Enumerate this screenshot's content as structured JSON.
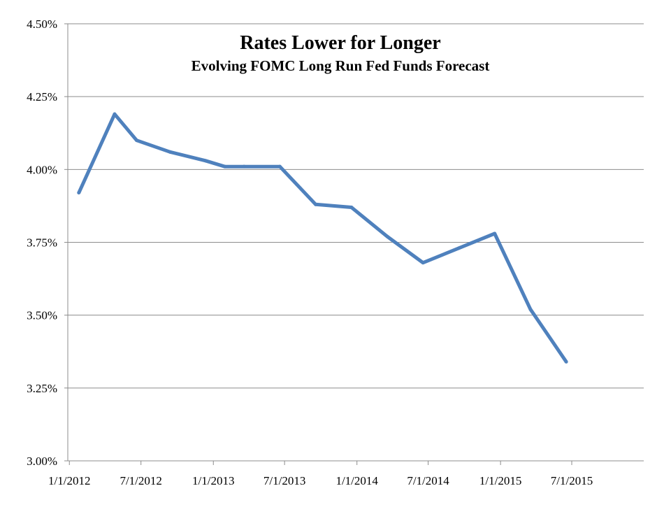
{
  "chart_data": {
    "type": "line",
    "title": "Rates Lower for Longer",
    "subtitle": "Evolving FOMC Long Run Fed Funds Forecast",
    "xlabel": "",
    "ylabel": "",
    "x_ticks": [
      "1/1/2012",
      "7/1/2012",
      "1/1/2013",
      "7/1/2013",
      "1/1/2014",
      "7/1/2014",
      "1/1/2015",
      "7/1/2015"
    ],
    "y_ticks": [
      "3.00%",
      "3.25%",
      "3.50%",
      "3.75%",
      "4.00%",
      "4.25%",
      "4.50%"
    ],
    "xlim": [
      "2011-12-28",
      "2015-12-31"
    ],
    "ylim": [
      3.0,
      4.5
    ],
    "grid": "horizontal",
    "legend": "none",
    "series": [
      {
        "color": "#4f81bd",
        "points": [
          {
            "x": "2012-01-25",
            "y": 3.92
          },
          {
            "x": "2012-04-25",
            "y": 4.19
          },
          {
            "x": "2012-06-20",
            "y": 4.1
          },
          {
            "x": "2012-09-13",
            "y": 4.06
          },
          {
            "x": "2012-12-12",
            "y": 4.03
          },
          {
            "x": "2013-01-30",
            "y": 4.01
          },
          {
            "x": "2013-03-20",
            "y": 4.01
          },
          {
            "x": "2013-06-19",
            "y": 4.01
          },
          {
            "x": "2013-09-18",
            "y": 3.88
          },
          {
            "x": "2013-12-18",
            "y": 3.87
          },
          {
            "x": "2014-03-19",
            "y": 3.77
          },
          {
            "x": "2014-06-18",
            "y": 3.68
          },
          {
            "x": "2014-09-17",
            "y": 3.73
          },
          {
            "x": "2014-12-17",
            "y": 3.78
          },
          {
            "x": "2015-03-18",
            "y": 3.52
          },
          {
            "x": "2015-06-17",
            "y": 3.34
          }
        ]
      }
    ]
  }
}
